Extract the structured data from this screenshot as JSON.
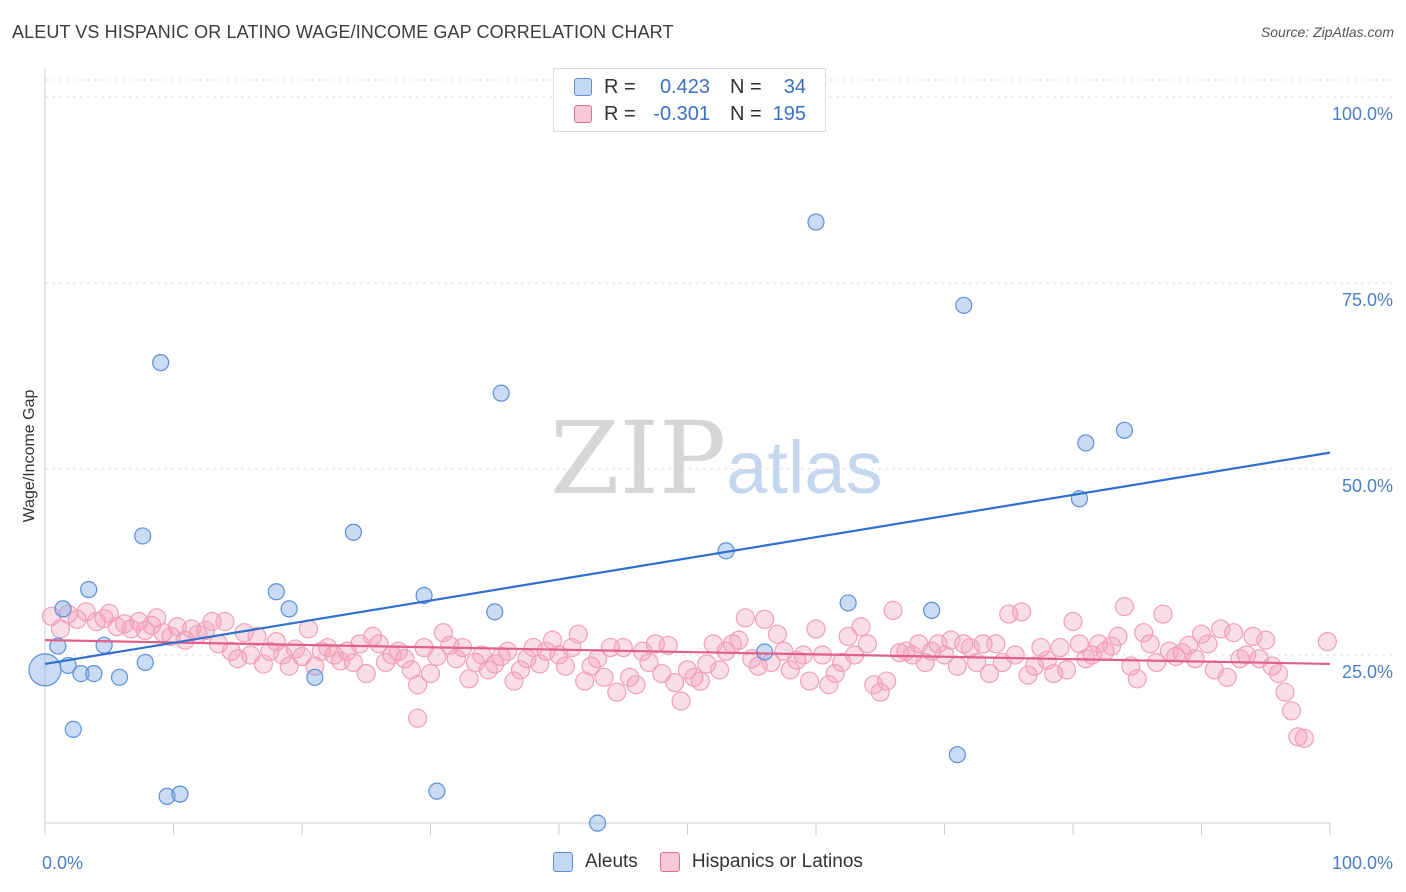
{
  "title": "ALEUT VS HISPANIC OR LATINO WAGE/INCOME GAP CORRELATION CHART",
  "source": "Source: ZipAtlas.com",
  "watermark": {
    "zip": "ZIP",
    "atlas": "atlas"
  },
  "legend": {
    "rows": [
      {
        "r_label": "R =",
        "r_value": "0.423",
        "n_label": "N =",
        "n_value": "34",
        "color": "#a8c8f0",
        "border": "#5b8fd6"
      },
      {
        "r_label": "R =",
        "r_value": "-0.301",
        "n_label": "N =",
        "n_value": "195",
        "color": "#f8c0d0",
        "border": "#e07090"
      }
    ]
  },
  "bottom_legend": [
    {
      "label": "Aleuts",
      "color": "#c3d8f5",
      "border": "#5b8fd6"
    },
    {
      "label": "Hispanics or Latinos",
      "color": "#f8c8d6",
      "border": "#e07090"
    }
  ],
  "chart_data": {
    "type": "scatter",
    "title": "ALEUT VS HISPANIC OR LATINO WAGE/INCOME GAP CORRELATION CHART",
    "xlabel": "",
    "ylabel": "Wage/Income Gap",
    "xlim": [
      0,
      100
    ],
    "ylim": [
      0,
      105
    ],
    "x_tick_labels": [
      "0.0%",
      "100.0%"
    ],
    "y_ticks": [
      25,
      50,
      75,
      100
    ],
    "y_tick_labels": [
      "25.0%",
      "50.0%",
      "75.0%",
      "100.0%"
    ],
    "grid": true,
    "legend_position": "top-center",
    "series": [
      {
        "name": "Aleuts",
        "color": "#7aa8e6",
        "line_color": "#2f6fcf",
        "trend": [
          [
            0,
            23.8
          ],
          [
            100,
            52.2
          ]
        ],
        "points": [
          [
            0,
            23
          ],
          [
            1,
            26.2
          ],
          [
            1.4,
            31.2
          ],
          [
            1.8,
            23.6
          ],
          [
            2.2,
            15
          ],
          [
            2.8,
            22.5
          ],
          [
            3.4,
            33.8
          ],
          [
            3.8,
            22.5
          ],
          [
            4.6,
            26.3
          ],
          [
            5.8,
            22
          ],
          [
            7.6,
            41
          ],
          [
            7.8,
            24
          ],
          [
            9,
            64.3
          ],
          [
            9.5,
            6
          ],
          [
            10.5,
            6.3
          ],
          [
            18,
            33.5
          ],
          [
            19,
            31.2
          ],
          [
            21,
            22
          ],
          [
            24,
            41.5
          ],
          [
            29.5,
            33
          ],
          [
            30.5,
            6.7
          ],
          [
            35,
            30.8
          ],
          [
            35.5,
            60.2
          ],
          [
            43,
            2.4
          ],
          [
            53,
            39
          ],
          [
            56,
            25.4
          ],
          [
            60,
            83.2
          ],
          [
            62.5,
            32
          ],
          [
            69,
            31
          ],
          [
            71,
            11.6
          ],
          [
            71.5,
            72
          ],
          [
            80.5,
            46
          ],
          [
            81,
            53.5
          ],
          [
            84,
            55.2
          ]
        ]
      },
      {
        "name": "Hispanics or Latinos",
        "color": "#f0a0b8",
        "line_color": "#e0608a",
        "trend": [
          [
            0,
            27
          ],
          [
            100,
            23.8
          ]
        ],
        "points": [
          [
            0.5,
            30.2
          ],
          [
            1.2,
            28.5
          ],
          [
            1.8,
            30.5
          ],
          [
            2.5,
            29.8
          ],
          [
            3.2,
            30.8
          ],
          [
            4.0,
            29.5
          ],
          [
            4.6,
            29.9
          ],
          [
            5.0,
            30.6
          ],
          [
            5.6,
            28.8
          ],
          [
            6.2,
            29.2
          ],
          [
            6.7,
            28.5
          ],
          [
            7.3,
            29.5
          ],
          [
            7.8,
            28.3
          ],
          [
            8.3,
            29.0
          ],
          [
            8.7,
            30.0
          ],
          [
            9.2,
            28.0
          ],
          [
            9.8,
            27.5
          ],
          [
            10.3,
            28.8
          ],
          [
            10.9,
            27.0
          ],
          [
            11.4,
            28.5
          ],
          [
            11.9,
            27.8
          ],
          [
            12.5,
            28.3
          ],
          [
            13.0,
            29.5
          ],
          [
            13.5,
            26.5
          ],
          [
            14.0,
            29.5
          ],
          [
            14.5,
            25.5
          ],
          [
            15.0,
            24.5
          ],
          [
            15.5,
            28.0
          ],
          [
            16.0,
            25.0
          ],
          [
            16.5,
            27.5
          ],
          [
            17.0,
            23.8
          ],
          [
            17.5,
            25.5
          ],
          [
            18.0,
            26.8
          ],
          [
            18.5,
            25.0
          ],
          [
            19.0,
            23.5
          ],
          [
            19.5,
            25.8
          ],
          [
            20.0,
            24.8
          ],
          [
            20.5,
            28.5
          ],
          [
            21.0,
            23.5
          ],
          [
            21.5,
            25.5
          ],
          [
            22.0,
            26.0
          ],
          [
            22.5,
            25.0
          ],
          [
            23.0,
            24.2
          ],
          [
            23.5,
            25.5
          ],
          [
            24.0,
            24.0
          ],
          [
            24.5,
            26.5
          ],
          [
            25.0,
            22.5
          ],
          [
            25.5,
            27.5
          ],
          [
            26.0,
            26.5
          ],
          [
            26.5,
            24.0
          ],
          [
            27.0,
            25.0
          ],
          [
            27.5,
            25.5
          ],
          [
            28.0,
            24.5
          ],
          [
            28.5,
            23.0
          ],
          [
            29.0,
            21.0
          ],
          [
            29.5,
            26.0
          ],
          [
            30.0,
            22.5
          ],
          [
            30.5,
            24.8
          ],
          [
            31.0,
            28.0
          ],
          [
            31.5,
            26.3
          ],
          [
            32.0,
            24.5
          ],
          [
            32.5,
            26.0
          ],
          [
            33.0,
            21.8
          ],
          [
            33.5,
            24.0
          ],
          [
            34.0,
            25.0
          ],
          [
            34.5,
            23.0
          ],
          [
            35.0,
            23.8
          ],
          [
            35.5,
            24.8
          ],
          [
            36.0,
            25.5
          ],
          [
            36.5,
            21.5
          ],
          [
            37.0,
            23.0
          ],
          [
            37.5,
            24.5
          ],
          [
            38.0,
            26.0
          ],
          [
            38.5,
            23.8
          ],
          [
            39.0,
            25.5
          ],
          [
            39.5,
            27.0
          ],
          [
            40.0,
            25.0
          ],
          [
            40.5,
            23.5
          ],
          [
            41.0,
            26.0
          ],
          [
            41.5,
            27.8
          ],
          [
            42.0,
            21.5
          ],
          [
            42.5,
            23.5
          ],
          [
            43.0,
            24.5
          ],
          [
            43.5,
            22.0
          ],
          [
            44.0,
            26.0
          ],
          [
            44.5,
            20.0
          ],
          [
            45.0,
            26.0
          ],
          [
            45.5,
            22.0
          ],
          [
            46.0,
            21.0
          ],
          [
            46.5,
            25.5
          ],
          [
            47.0,
            24.0
          ],
          [
            47.5,
            26.5
          ],
          [
            48.0,
            22.5
          ],
          [
            48.5,
            26.3
          ],
          [
            49.0,
            21.3
          ],
          [
            49.5,
            18.8
          ],
          [
            50.0,
            23.0
          ],
          [
            50.5,
            22.0
          ],
          [
            51.0,
            21.5
          ],
          [
            51.5,
            23.8
          ],
          [
            52.0,
            26.5
          ],
          [
            52.5,
            23.0
          ],
          [
            53.0,
            25.5
          ],
          [
            53.5,
            26.5
          ],
          [
            54.0,
            27.0
          ],
          [
            54.5,
            30.0
          ],
          [
            55.0,
            24.5
          ],
          [
            55.5,
            23.5
          ],
          [
            56.0,
            29.8
          ],
          [
            56.5,
            24.0
          ],
          [
            57.0,
            27.8
          ],
          [
            57.5,
            25.5
          ],
          [
            58.0,
            23.0
          ],
          [
            58.5,
            24.3
          ],
          [
            59.0,
            25.0
          ],
          [
            59.5,
            21.5
          ],
          [
            60.0,
            28.5
          ],
          [
            60.5,
            25.0
          ],
          [
            61.0,
            21.0
          ],
          [
            61.5,
            22.5
          ],
          [
            62.0,
            24.0
          ],
          [
            62.5,
            27.5
          ],
          [
            63.0,
            25.0
          ],
          [
            63.5,
            28.8
          ],
          [
            64.0,
            26.5
          ],
          [
            64.5,
            21.0
          ],
          [
            65.0,
            20.0
          ],
          [
            65.5,
            21.5
          ],
          [
            66.0,
            31.0
          ],
          [
            66.5,
            25.3
          ],
          [
            67.0,
            25.5
          ],
          [
            67.5,
            25.0
          ],
          [
            68.0,
            26.5
          ],
          [
            68.5,
            24.0
          ],
          [
            69.0,
            25.5
          ],
          [
            69.5,
            26.5
          ],
          [
            70.0,
            25.0
          ],
          [
            70.5,
            27.0
          ],
          [
            71.0,
            23.5
          ],
          [
            71.5,
            26.5
          ],
          [
            72.0,
            26.0
          ],
          [
            72.5,
            24.0
          ],
          [
            73.0,
            26.5
          ],
          [
            73.5,
            22.5
          ],
          [
            74.0,
            26.5
          ],
          [
            74.5,
            24.0
          ],
          [
            75.0,
            30.5
          ],
          [
            75.5,
            25.0
          ],
          [
            76.0,
            30.8
          ],
          [
            76.5,
            22.3
          ],
          [
            77.0,
            23.5
          ],
          [
            77.5,
            26.0
          ],
          [
            78.0,
            24.3
          ],
          [
            78.5,
            22.5
          ],
          [
            79.0,
            26.0
          ],
          [
            79.5,
            23.0
          ],
          [
            80.0,
            29.5
          ],
          [
            80.5,
            26.5
          ],
          [
            81.0,
            24.5
          ],
          [
            81.5,
            25.0
          ],
          [
            82.0,
            26.5
          ],
          [
            82.5,
            25.5
          ],
          [
            83.0,
            26.2
          ],
          [
            83.5,
            27.5
          ],
          [
            84.0,
            31.5
          ],
          [
            84.5,
            23.5
          ],
          [
            85.0,
            21.8
          ],
          [
            85.5,
            28.0
          ],
          [
            86.0,
            26.5
          ],
          [
            86.5,
            24.0
          ],
          [
            87.0,
            30.5
          ],
          [
            87.5,
            25.5
          ],
          [
            88.0,
            24.8
          ],
          [
            88.5,
            25.3
          ],
          [
            89.0,
            26.3
          ],
          [
            89.5,
            24.5
          ],
          [
            90.0,
            27.8
          ],
          [
            90.5,
            26.5
          ],
          [
            91.0,
            23.0
          ],
          [
            91.5,
            28.5
          ],
          [
            92.0,
            22.0
          ],
          [
            92.5,
            28.0
          ],
          [
            93.0,
            24.5
          ],
          [
            93.5,
            25.0
          ],
          [
            94.0,
            27.5
          ],
          [
            94.5,
            24.5
          ],
          [
            95.0,
            27.0
          ],
          [
            95.5,
            23.5
          ],
          [
            96.0,
            22.5
          ],
          [
            96.5,
            20.0
          ],
          [
            97.0,
            17.5
          ],
          [
            97.5,
            14.0
          ],
          [
            98.0,
            13.8
          ],
          [
            99.8,
            26.8
          ],
          [
            29.0,
            16.5
          ]
        ]
      }
    ]
  }
}
